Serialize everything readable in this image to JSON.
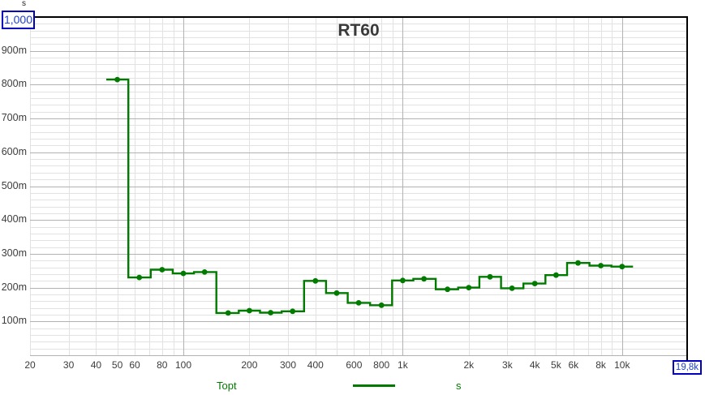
{
  "title": "RT60",
  "y_axis": {
    "unit": "s",
    "cursor_box_label": "1,000",
    "ticks": [
      {
        "value": 900,
        "label": "900m"
      },
      {
        "value": 800,
        "label": "800m"
      },
      {
        "value": 700,
        "label": "700m"
      },
      {
        "value": 600,
        "label": "600m"
      },
      {
        "value": 500,
        "label": "500m"
      },
      {
        "value": 400,
        "label": "400m"
      },
      {
        "value": 300,
        "label": "300m"
      },
      {
        "value": 200,
        "label": "200m"
      },
      {
        "value": 100,
        "label": "100m"
      }
    ]
  },
  "x_axis": {
    "cursor_box_label": "19,8k",
    "ticks": [
      {
        "hz": 20,
        "label": "20"
      },
      {
        "hz": 30,
        "label": "30"
      },
      {
        "hz": 40,
        "label": "40"
      },
      {
        "hz": 50,
        "label": "50"
      },
      {
        "hz": 60,
        "label": "60"
      },
      {
        "hz": 80,
        "label": "80"
      },
      {
        "hz": 100,
        "label": "100"
      },
      {
        "hz": 200,
        "label": "200"
      },
      {
        "hz": 300,
        "label": "300"
      },
      {
        "hz": 400,
        "label": "400"
      },
      {
        "hz": 600,
        "label": "600"
      },
      {
        "hz": 800,
        "label": "800"
      },
      {
        "hz": 1000,
        "label": "1k"
      },
      {
        "hz": 2000,
        "label": "2k"
      },
      {
        "hz": 3000,
        "label": "3k"
      },
      {
        "hz": 4000,
        "label": "4k"
      },
      {
        "hz": 5000,
        "label": "5k"
      },
      {
        "hz": 6000,
        "label": "6k"
      },
      {
        "hz": 8000,
        "label": "8k"
      },
      {
        "hz": 10000,
        "label": "10k"
      }
    ]
  },
  "legend": {
    "trace_label": "Topt",
    "unit_label": "s"
  },
  "colors": {
    "trace": "#007b00",
    "cursor_box_border": "#0000c0",
    "cursor_box_text": "#2040d0",
    "grid_minor": "#e2e2e2",
    "grid_major": "#b2b2b2",
    "axis_border": "#000000",
    "tick_label": "#3c3c3c",
    "title": "#3a3a3a"
  },
  "chart_data": {
    "type": "line",
    "subtype": "step-third-octave-bands-with-points",
    "title": "RT60",
    "x_scale": "log",
    "x_range_hz": [
      20,
      19800
    ],
    "y_range_ms": [
      0,
      1000
    ],
    "grid": true,
    "legend_position": "bottom",
    "y_tick_format": "milliseconds shown with m suffix (unit s)",
    "series": [
      {
        "name": "Topt",
        "unit": "s",
        "frequencies_hz": [
          50,
          63,
          80,
          100,
          125,
          160,
          200,
          250,
          315,
          400,
          500,
          630,
          800,
          1000,
          1250,
          1600,
          2000,
          2500,
          3150,
          4000,
          5000,
          6300,
          8000,
          10000
        ],
        "rt60_ms": [
          815,
          230,
          253,
          242,
          246,
          125,
          132,
          126,
          130,
          220,
          184,
          155,
          148,
          221,
          226,
          195,
          200,
          232,
          198,
          212,
          237,
          273,
          265,
          262
        ]
      }
    ]
  }
}
